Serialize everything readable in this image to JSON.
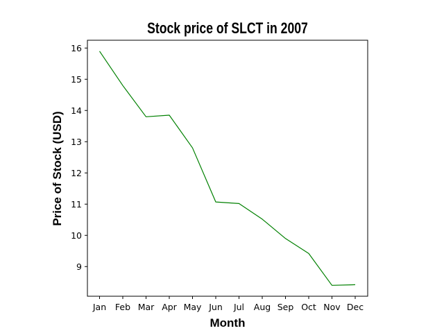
{
  "chart_data": {
    "type": "line",
    "title": "Stock price of SLCT in 2007",
    "xlabel": "Month",
    "ylabel": "Price of Stock (USD)",
    "categories": [
      "Jan",
      "Feb",
      "Mar",
      "Apr",
      "May",
      "Jun",
      "Jul",
      "Aug",
      "Sep",
      "Oct",
      "Nov",
      "Dec"
    ],
    "series": [
      {
        "values": [
          15.9,
          14.8,
          13.8,
          13.85,
          12.8,
          11.07,
          11.02,
          10.52,
          9.9,
          9.42,
          8.4,
          8.42
        ],
        "color": "#008000"
      }
    ],
    "yticks": [
      9,
      10,
      11,
      12,
      13,
      14,
      15,
      16
    ],
    "ylim": [
      8.05,
      16.25
    ],
    "grid": false,
    "legend": "none"
  }
}
